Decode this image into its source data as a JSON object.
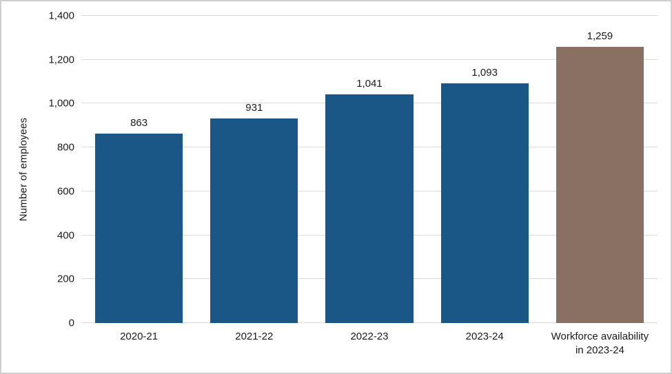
{
  "chart_data": {
    "type": "bar",
    "categories": [
      "2020-21",
      "2021-22",
      "2022-23",
      "2023-24",
      "Workforce availability in 2023-24"
    ],
    "values": [
      863,
      931,
      1041,
      1093,
      1259
    ],
    "data_labels": [
      "863",
      "931",
      "1,041",
      "1,093",
      "1,259"
    ],
    "bar_colors": [
      "#1b5786",
      "#1b5786",
      "#1b5786",
      "#1b5786",
      "#8a6f63"
    ],
    "title": "",
    "xlabel": "",
    "ylabel": "Number of employees",
    "ylim": [
      0,
      1400
    ],
    "yticks": [
      0,
      200,
      400,
      600,
      800,
      1000,
      1200,
      1400
    ],
    "ytick_labels": [
      "0",
      "200",
      "400",
      "600",
      "800",
      "1,000",
      "1,200",
      "1,400"
    ],
    "grid": true,
    "legend": false,
    "gridline_color": "#d9d9d9",
    "frame_color": "#cfcfcf",
    "text_color": "#1a1a1a"
  }
}
